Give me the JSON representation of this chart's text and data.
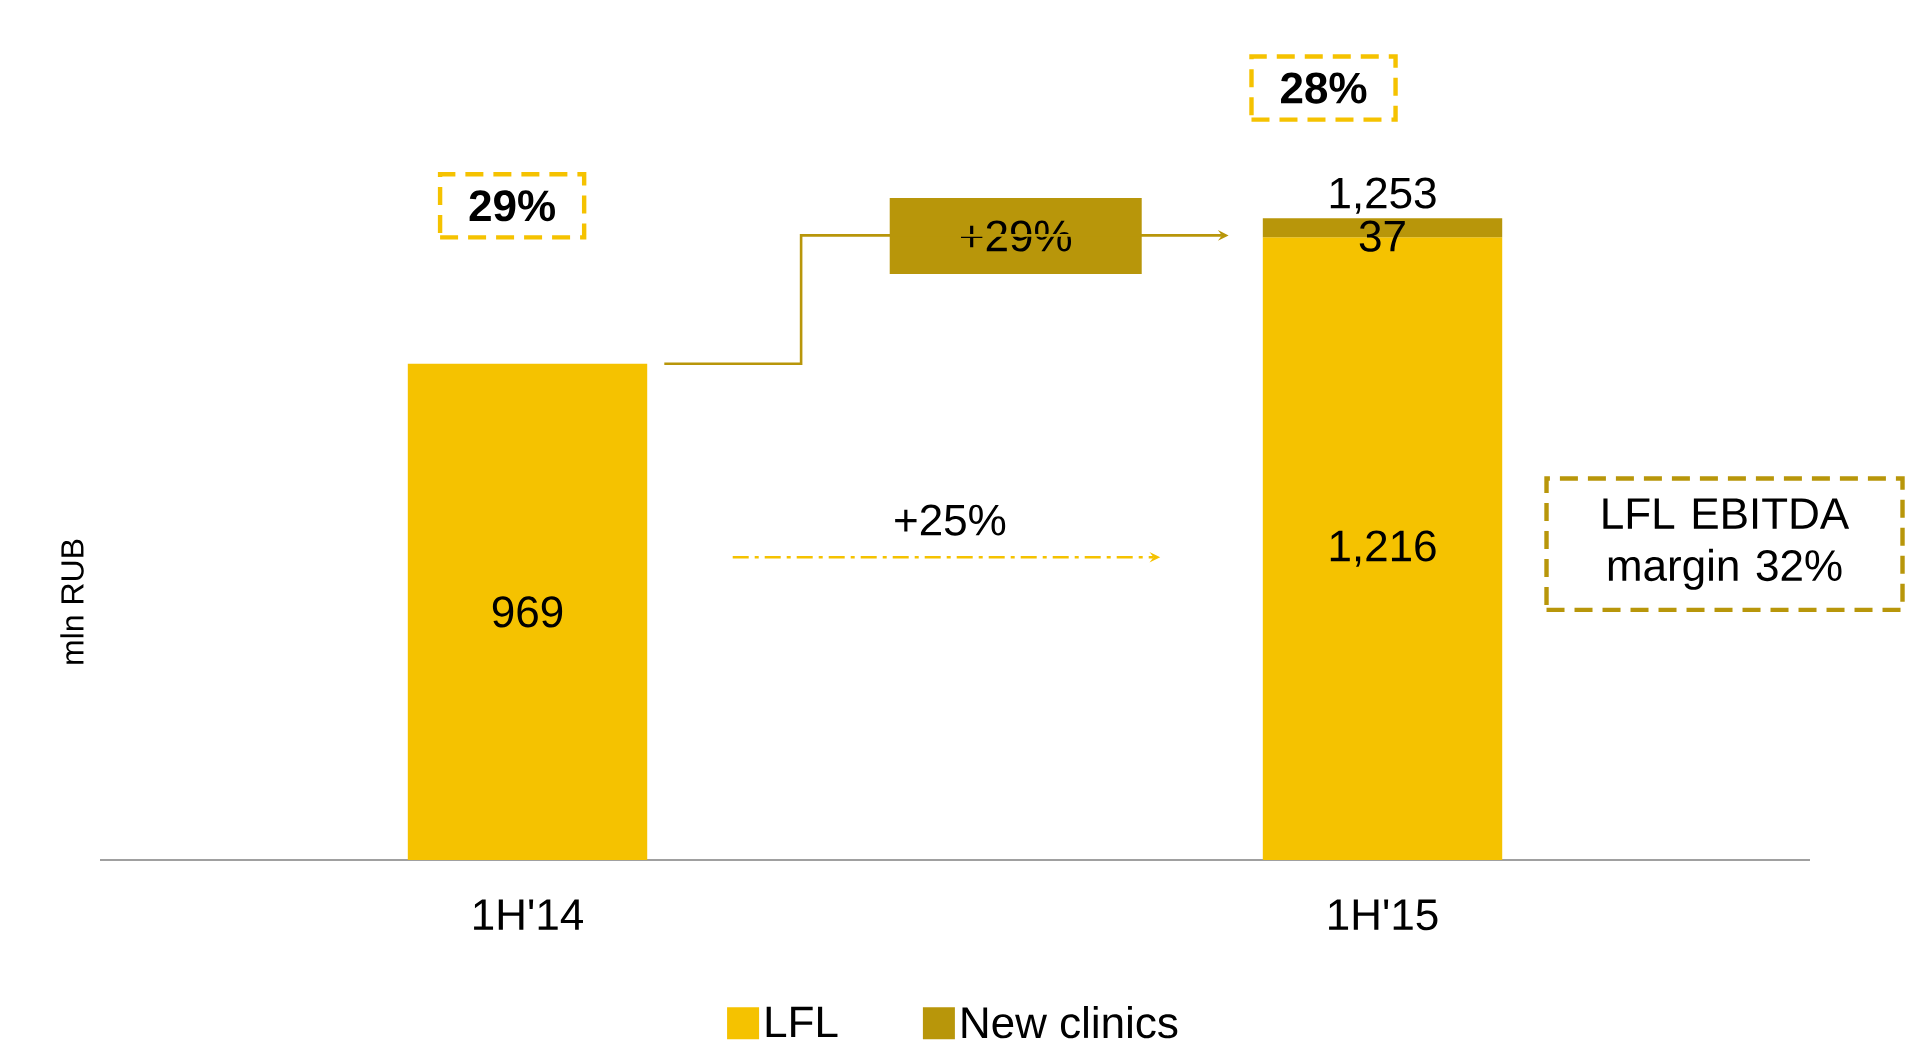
{
  "chart_data": {
    "type": "bar",
    "stacked": true,
    "categories": [
      "1H'14",
      "1H'15"
    ],
    "series": [
      {
        "name": "LFL",
        "color": "#f5c200",
        "values": [
          969,
          1216
        ],
        "value_labels": [
          "969",
          "1,216"
        ]
      },
      {
        "name": "New  clinics",
        "color": "#b8960a",
        "values": [
          null,
          37
        ],
        "value_labels": [
          null,
          "37"
        ]
      }
    ],
    "totals": [
      null,
      "1,253"
    ],
    "tick_labels": "x",
    "ylabel": "mln RUB",
    "legend": "bottom",
    "grid": false,
    "annotations": [
      "29%",
      "28%",
      "+29%",
      "+25%",
      "LFL EBITDA margin 32%"
    ]
  }
}
